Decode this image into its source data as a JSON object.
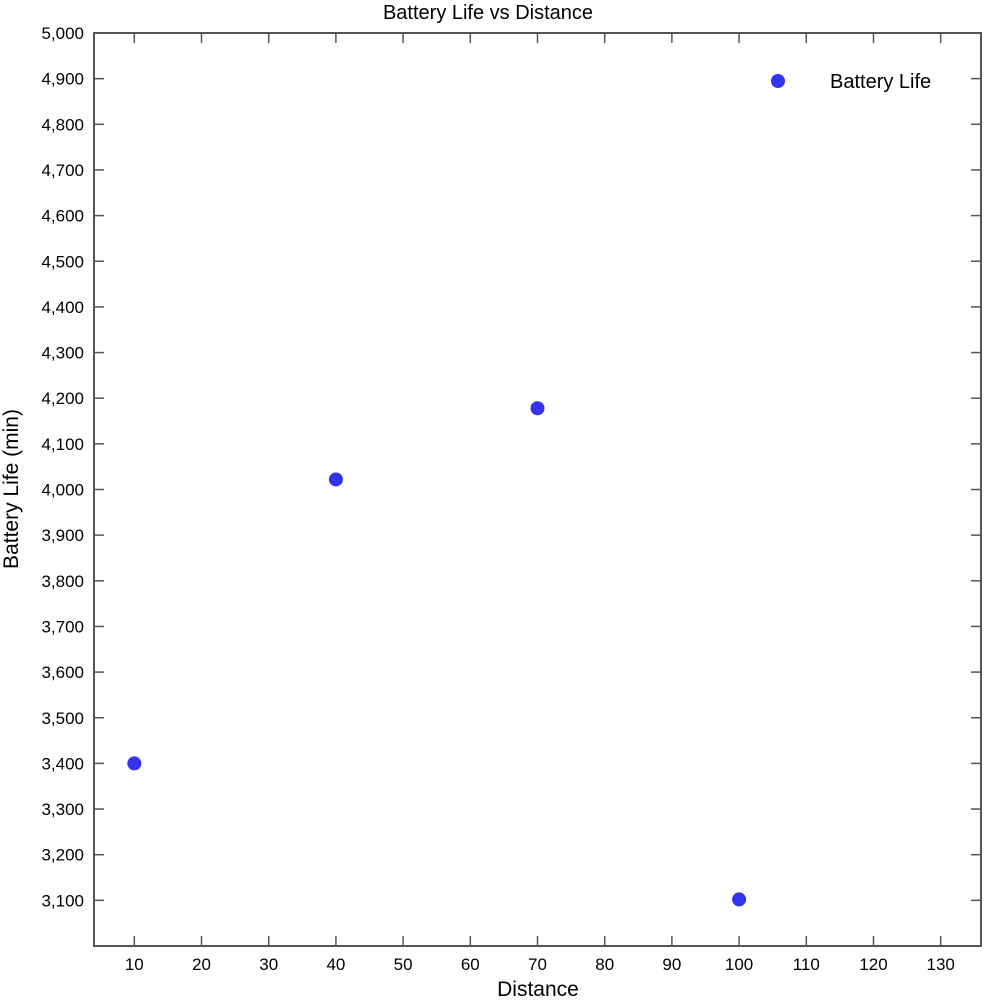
{
  "chart_data": {
    "type": "scatter",
    "title": "Battery Life vs Distance",
    "xlabel": "Distance",
    "ylabel": "Battery Life (min)",
    "xlim": [
      4,
      136
    ],
    "ylim": [
      3000,
      5000
    ],
    "xticks": [
      10,
      20,
      30,
      40,
      50,
      60,
      70,
      80,
      90,
      100,
      110,
      120,
      130
    ],
    "yticks": [
      3100,
      3200,
      3300,
      3400,
      3500,
      3600,
      3700,
      3800,
      3900,
      4000,
      4100,
      4200,
      4300,
      4400,
      4500,
      4600,
      4700,
      4800,
      4900,
      5000
    ],
    "grid": false,
    "legend_position": "top-right",
    "series": [
      {
        "name": "Battery Life",
        "color": "#3333ee",
        "x": [
          10,
          40,
          70,
          100
        ],
        "y": [
          3400,
          4022,
          4178,
          3102
        ]
      }
    ]
  }
}
